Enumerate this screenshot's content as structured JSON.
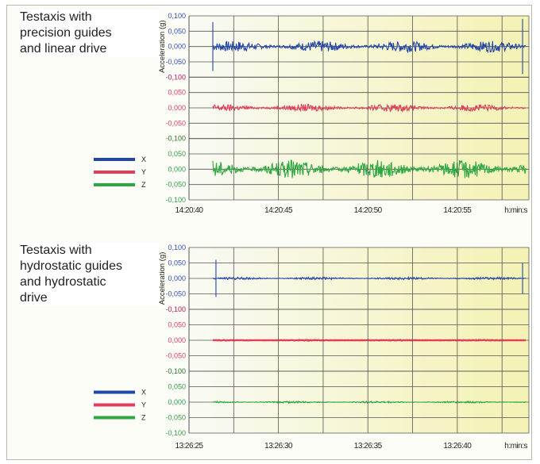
{
  "chart_data": [
    {
      "type": "line",
      "caption": [
        "Testaxis with",
        "precision guides",
        "and linear drive"
      ],
      "ylabel": "Acceleration (g)",
      "xlabel": "h:min:s",
      "x_ticks": [
        "14:20:40",
        "14:20:45",
        "14:20:50",
        "14:20:55"
      ],
      "x_range": [
        "14:20:40",
        "14:20:59"
      ],
      "y_ticks": [
        "0,100",
        "0,050",
        "0,000",
        "-0,050",
        "-0,100"
      ],
      "ylim": [
        -0.1,
        0.1
      ],
      "series": [
        {
          "name": "X",
          "color": "#2346a8",
          "amplitude": 0.018,
          "spikes": [
            [
              0.0,
              0.08
            ],
            [
              0.99,
              0.09
            ]
          ],
          "values": [
            0.0,
            0.0,
            0.0
          ]
        },
        {
          "name": "Y",
          "color": "#e0405a",
          "amplitude": 0.012,
          "spikes": [],
          "values": [
            0.0,
            0.0,
            0.0
          ]
        },
        {
          "name": "Z",
          "color": "#2fa844",
          "amplitude": 0.03,
          "spikes": [],
          "values": [
            0.0,
            0.0,
            0.0
          ]
        }
      ],
      "legend": "left-bottom"
    },
    {
      "type": "line",
      "caption": [
        "Testaxis with",
        "hydrostatic guides",
        "and hydrostatic",
        "drive"
      ],
      "ylabel": "Acceleration (g)",
      "xlabel": "h:min:s",
      "x_ticks": [
        "13:26:25",
        "13:26:30",
        "13:26:35",
        "13:26:40"
      ],
      "x_range": [
        "13:26:25",
        "13:26:44"
      ],
      "y_ticks": [
        "0,100",
        "0,050",
        "0,000",
        "-0,050",
        "-0,100"
      ],
      "ylim": [
        -0.1,
        0.1
      ],
      "series": [
        {
          "name": "X",
          "color": "#2346a8",
          "amplitude": 0.004,
          "spikes": [
            [
              0.01,
              0.06
            ],
            [
              0.99,
              0.05
            ]
          ],
          "values": [
            0.0,
            0.0,
            0.0
          ]
        },
        {
          "name": "Y",
          "color": "#e0405a",
          "amplitude": 0.001,
          "spikes": [],
          "values": [
            0.0,
            0.0,
            0.0
          ]
        },
        {
          "name": "Z",
          "color": "#2fa844",
          "amplitude": 0.003,
          "spikes": [],
          "values": [
            0.0,
            0.0,
            0.0
          ]
        }
      ],
      "legend": "left-bottom"
    }
  ],
  "colors": {
    "bg_left": "#f9faf4",
    "bg_right": "#f4f2b3",
    "grid": "#555555",
    "tick_label_blue": "#3050b0",
    "tick_label_red": "#d84060",
    "tick_label_green": "#2e9b48"
  }
}
